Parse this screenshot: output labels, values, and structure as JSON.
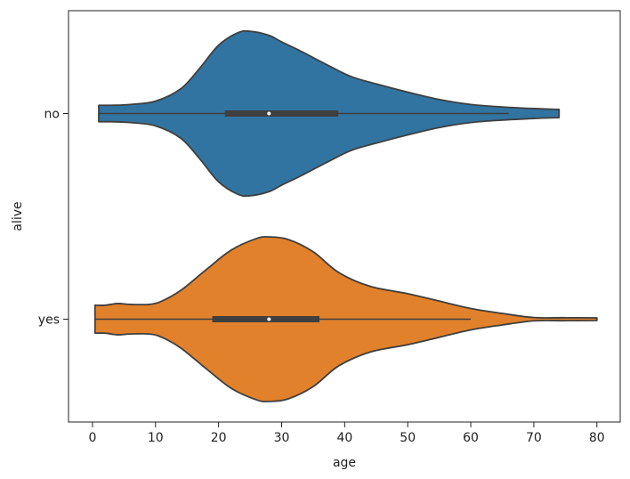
{
  "chart_data": {
    "type": "violin",
    "orientation": "horizontal",
    "title": "",
    "xlabel": "age",
    "ylabel": "alive",
    "xlim": [
      -3.8,
      83.7
    ],
    "xticks": [
      0,
      10,
      20,
      30,
      40,
      50,
      60,
      70,
      80
    ],
    "categories": [
      "no",
      "yes"
    ],
    "grid": false,
    "legend": "none",
    "series": [
      {
        "category": "no",
        "color": "#3274a1",
        "range": [
          1,
          74
        ],
        "whiskers": [
          1,
          66
        ],
        "quartiles": [
          21,
          28,
          39
        ],
        "density": [
          [
            1,
            0.1
          ],
          [
            3,
            0.1
          ],
          [
            6,
            0.11
          ],
          [
            10,
            0.15
          ],
          [
            14,
            0.3
          ],
          [
            17,
            0.55
          ],
          [
            20,
            0.83
          ],
          [
            23,
            0.98
          ],
          [
            25,
            1.0
          ],
          [
            28,
            0.95
          ],
          [
            30,
            0.87
          ],
          [
            33,
            0.76
          ],
          [
            37,
            0.6
          ],
          [
            41,
            0.45
          ],
          [
            45,
            0.36
          ],
          [
            50,
            0.26
          ],
          [
            55,
            0.17
          ],
          [
            60,
            0.11
          ],
          [
            65,
            0.08
          ],
          [
            70,
            0.06
          ],
          [
            74,
            0.05
          ]
        ]
      },
      {
        "category": "yes",
        "color": "#e1812c",
        "range": [
          0.4,
          80
        ],
        "whiskers": [
          0.4,
          60
        ],
        "quartiles": [
          19,
          28,
          36
        ],
        "density": [
          [
            0.4,
            0.17
          ],
          [
            2,
            0.17
          ],
          [
            4,
            0.19
          ],
          [
            6,
            0.18
          ],
          [
            9,
            0.18
          ],
          [
            11,
            0.22
          ],
          [
            14,
            0.35
          ],
          [
            18,
            0.6
          ],
          [
            22,
            0.84
          ],
          [
            26,
            0.98
          ],
          [
            28,
            1.0
          ],
          [
            31,
            0.97
          ],
          [
            35,
            0.82
          ],
          [
            39,
            0.57
          ],
          [
            44,
            0.4
          ],
          [
            50,
            0.31
          ],
          [
            55,
            0.22
          ],
          [
            60,
            0.13
          ],
          [
            65,
            0.07
          ],
          [
            70,
            0.02
          ],
          [
            75,
            0.018
          ],
          [
            80,
            0.016
          ]
        ]
      }
    ]
  }
}
